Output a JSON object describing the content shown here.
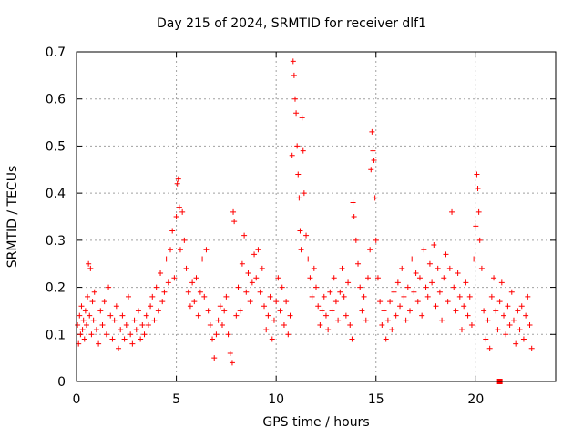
{
  "chart_data": {
    "type": "scatter",
    "title": "Day 215 of 2024, SRMTID for receiver dlf1",
    "xlabel": "GPS time / hours",
    "ylabel": "SRMTID / TECUs",
    "xlim": [
      0,
      24
    ],
    "ylim": [
      0,
      0.7
    ],
    "xticks": [
      0,
      5,
      10,
      15,
      20
    ],
    "yticks": [
      0,
      0.1,
      0.2,
      0.3,
      0.4,
      0.5,
      0.6,
      0.7
    ],
    "xtick_labels": [
      "0",
      "5",
      "10",
      "15",
      "20"
    ],
    "ytick_labels": [
      "0",
      "0.1",
      "0.2",
      "0.3",
      "0.4",
      "0.5",
      "0.6",
      "0.7"
    ],
    "grid": true,
    "marker": "+",
    "color": "#ff0000",
    "series": [
      {
        "name": "SRMTID",
        "points": [
          [
            0.05,
            0.12
          ],
          [
            0.1,
            0.08
          ],
          [
            0.15,
            0.14
          ],
          [
            0.2,
            0.1
          ],
          [
            0.25,
            0.16
          ],
          [
            0.3,
            0.11
          ],
          [
            0.35,
            0.13
          ],
          [
            0.4,
            0.09
          ],
          [
            0.45,
            0.15
          ],
          [
            0.5,
            0.12
          ],
          [
            0.55,
            0.18
          ],
          [
            0.6,
            0.25
          ],
          [
            0.65,
            0.14
          ],
          [
            0.7,
            0.24
          ],
          [
            0.75,
            0.1
          ],
          [
            0.8,
            0.17
          ],
          [
            0.85,
            0.13
          ],
          [
            0.9,
            0.19
          ],
          [
            1.0,
            0.11
          ],
          [
            1.1,
            0.08
          ],
          [
            1.2,
            0.15
          ],
          [
            1.3,
            0.12
          ],
          [
            1.4,
            0.17
          ],
          [
            1.5,
            0.1
          ],
          [
            1.6,
            0.2
          ],
          [
            1.7,
            0.14
          ],
          [
            1.8,
            0.09
          ],
          [
            1.9,
            0.13
          ],
          [
            2.0,
            0.16
          ],
          [
            2.1,
            0.07
          ],
          [
            2.2,
            0.11
          ],
          [
            2.3,
            0.14
          ],
          [
            2.4,
            0.09
          ],
          [
            2.5,
            0.12
          ],
          [
            2.6,
            0.18
          ],
          [
            2.7,
            0.1
          ],
          [
            2.8,
            0.08
          ],
          [
            2.9,
            0.13
          ],
          [
            3.0,
            0.11
          ],
          [
            3.1,
            0.15
          ],
          [
            3.2,
            0.09
          ],
          [
            3.3,
            0.12
          ],
          [
            3.4,
            0.1
          ],
          [
            3.5,
            0.14
          ],
          [
            3.6,
            0.12
          ],
          [
            3.7,
            0.16
          ],
          [
            3.8,
            0.18
          ],
          [
            3.9,
            0.13
          ],
          [
            4.0,
            0.2
          ],
          [
            4.1,
            0.15
          ],
          [
            4.2,
            0.23
          ],
          [
            4.3,
            0.17
          ],
          [
            4.4,
            0.19
          ],
          [
            4.5,
            0.26
          ],
          [
            4.6,
            0.21
          ],
          [
            4.7,
            0.28
          ],
          [
            4.8,
            0.32
          ],
          [
            4.9,
            0.22
          ],
          [
            5.0,
            0.35
          ],
          [
            5.05,
            0.42
          ],
          [
            5.1,
            0.43
          ],
          [
            5.15,
            0.37
          ],
          [
            5.2,
            0.28
          ],
          [
            5.3,
            0.36
          ],
          [
            5.4,
            0.3
          ],
          [
            5.5,
            0.24
          ],
          [
            5.6,
            0.19
          ],
          [
            5.7,
            0.16
          ],
          [
            5.8,
            0.21
          ],
          [
            5.9,
            0.17
          ],
          [
            6.0,
            0.22
          ],
          [
            6.1,
            0.14
          ],
          [
            6.2,
            0.19
          ],
          [
            6.3,
            0.26
          ],
          [
            6.4,
            0.18
          ],
          [
            6.5,
            0.28
          ],
          [
            6.6,
            0.15
          ],
          [
            6.7,
            0.12
          ],
          [
            6.8,
            0.09
          ],
          [
            6.9,
            0.05
          ],
          [
            7.0,
            0.1
          ],
          [
            7.1,
            0.13
          ],
          [
            7.2,
            0.16
          ],
          [
            7.3,
            0.12
          ],
          [
            7.4,
            0.15
          ],
          [
            7.5,
            0.18
          ],
          [
            7.6,
            0.1
          ],
          [
            7.7,
            0.06
          ],
          [
            7.8,
            0.04
          ],
          [
            7.85,
            0.36
          ],
          [
            7.9,
            0.34
          ],
          [
            8.0,
            0.14
          ],
          [
            8.1,
            0.2
          ],
          [
            8.2,
            0.15
          ],
          [
            8.3,
            0.25
          ],
          [
            8.4,
            0.31
          ],
          [
            8.5,
            0.19
          ],
          [
            8.6,
            0.23
          ],
          [
            8.7,
            0.17
          ],
          [
            8.8,
            0.21
          ],
          [
            8.9,
            0.27
          ],
          [
            9.0,
            0.22
          ],
          [
            9.1,
            0.28
          ],
          [
            9.2,
            0.19
          ],
          [
            9.3,
            0.24
          ],
          [
            9.4,
            0.16
          ],
          [
            9.5,
            0.11
          ],
          [
            9.6,
            0.14
          ],
          [
            9.7,
            0.18
          ],
          [
            9.8,
            0.09
          ],
          [
            9.9,
            0.13
          ],
          [
            10.0,
            0.17
          ],
          [
            10.1,
            0.22
          ],
          [
            10.2,
            0.15
          ],
          [
            10.3,
            0.2
          ],
          [
            10.4,
            0.12
          ],
          [
            10.5,
            0.17
          ],
          [
            10.6,
            0.1
          ],
          [
            10.7,
            0.14
          ],
          [
            10.8,
            0.48
          ],
          [
            10.85,
            0.68
          ],
          [
            10.9,
            0.65
          ],
          [
            10.95,
            0.6
          ],
          [
            11.0,
            0.57
          ],
          [
            11.05,
            0.5
          ],
          [
            11.1,
            0.44
          ],
          [
            11.15,
            0.39
          ],
          [
            11.2,
            0.32
          ],
          [
            11.25,
            0.28
          ],
          [
            11.3,
            0.56
          ],
          [
            11.35,
            0.49
          ],
          [
            11.4,
            0.4
          ],
          [
            11.5,
            0.31
          ],
          [
            11.6,
            0.26
          ],
          [
            11.7,
            0.22
          ],
          [
            11.8,
            0.18
          ],
          [
            11.9,
            0.24
          ],
          [
            12.0,
            0.2
          ],
          [
            12.1,
            0.16
          ],
          [
            12.2,
            0.12
          ],
          [
            12.3,
            0.15
          ],
          [
            12.4,
            0.18
          ],
          [
            12.5,
            0.14
          ],
          [
            12.6,
            0.11
          ],
          [
            12.7,
            0.19
          ],
          [
            12.8,
            0.15
          ],
          [
            12.9,
            0.22
          ],
          [
            13.0,
            0.17
          ],
          [
            13.1,
            0.13
          ],
          [
            13.2,
            0.19
          ],
          [
            13.3,
            0.24
          ],
          [
            13.4,
            0.18
          ],
          [
            13.5,
            0.14
          ],
          [
            13.6,
            0.21
          ],
          [
            13.7,
            0.12
          ],
          [
            13.8,
            0.09
          ],
          [
            13.85,
            0.38
          ],
          [
            13.9,
            0.35
          ],
          [
            14.0,
            0.3
          ],
          [
            14.1,
            0.25
          ],
          [
            14.2,
            0.2
          ],
          [
            14.3,
            0.15
          ],
          [
            14.4,
            0.18
          ],
          [
            14.5,
            0.13
          ],
          [
            14.6,
            0.22
          ],
          [
            14.7,
            0.28
          ],
          [
            14.75,
            0.45
          ],
          [
            14.8,
            0.53
          ],
          [
            14.85,
            0.49
          ],
          [
            14.9,
            0.47
          ],
          [
            14.95,
            0.39
          ],
          [
            15.0,
            0.3
          ],
          [
            15.1,
            0.22
          ],
          [
            15.2,
            0.17
          ],
          [
            15.3,
            0.12
          ],
          [
            15.4,
            0.15
          ],
          [
            15.5,
            0.09
          ],
          [
            15.6,
            0.13
          ],
          [
            15.7,
            0.17
          ],
          [
            15.8,
            0.11
          ],
          [
            15.9,
            0.19
          ],
          [
            16.0,
            0.14
          ],
          [
            16.1,
            0.21
          ],
          [
            16.2,
            0.16
          ],
          [
            16.3,
            0.24
          ],
          [
            16.4,
            0.18
          ],
          [
            16.5,
            0.13
          ],
          [
            16.6,
            0.2
          ],
          [
            16.7,
            0.15
          ],
          [
            16.8,
            0.26
          ],
          [
            16.9,
            0.19
          ],
          [
            17.0,
            0.23
          ],
          [
            17.1,
            0.17
          ],
          [
            17.2,
            0.22
          ],
          [
            17.3,
            0.14
          ],
          [
            17.4,
            0.28
          ],
          [
            17.5,
            0.2
          ],
          [
            17.6,
            0.18
          ],
          [
            17.7,
            0.25
          ],
          [
            17.8,
            0.21
          ],
          [
            17.9,
            0.29
          ],
          [
            18.0,
            0.16
          ],
          [
            18.1,
            0.24
          ],
          [
            18.2,
            0.19
          ],
          [
            18.3,
            0.13
          ],
          [
            18.4,
            0.22
          ],
          [
            18.5,
            0.27
          ],
          [
            18.6,
            0.17
          ],
          [
            18.7,
            0.24
          ],
          [
            18.8,
            0.36
          ],
          [
            18.9,
            0.2
          ],
          [
            19.0,
            0.15
          ],
          [
            19.1,
            0.23
          ],
          [
            19.2,
            0.18
          ],
          [
            19.3,
            0.11
          ],
          [
            19.4,
            0.16
          ],
          [
            19.5,
            0.21
          ],
          [
            19.6,
            0.14
          ],
          [
            19.7,
            0.18
          ],
          [
            19.8,
            0.12
          ],
          [
            19.9,
            0.26
          ],
          [
            20.0,
            0.33
          ],
          [
            20.05,
            0.44
          ],
          [
            20.1,
            0.41
          ],
          [
            20.15,
            0.36
          ],
          [
            20.2,
            0.3
          ],
          [
            20.3,
            0.24
          ],
          [
            20.4,
            0.15
          ],
          [
            20.5,
            0.09
          ],
          [
            20.6,
            0.13
          ],
          [
            20.7,
            0.07
          ],
          [
            20.8,
            0.18
          ],
          [
            20.9,
            0.22
          ],
          [
            21.0,
            0.15
          ],
          [
            21.1,
            0.11
          ],
          [
            21.2,
            0.17
          ],
          [
            21.3,
            0.21
          ],
          [
            21.4,
            0.14
          ],
          [
            21.5,
            0.1
          ],
          [
            21.6,
            0.16
          ],
          [
            21.7,
            0.12
          ],
          [
            21.8,
            0.19
          ],
          [
            21.9,
            0.13
          ],
          [
            22.0,
            0.08
          ],
          [
            22.1,
            0.15
          ],
          [
            22.2,
            0.11
          ],
          [
            22.3,
            0.16
          ],
          [
            22.4,
            0.09
          ],
          [
            22.5,
            0.14
          ],
          [
            22.6,
            0.18
          ],
          [
            22.7,
            0.12
          ],
          [
            22.8,
            0.07
          ]
        ]
      }
    ],
    "outlier_marker": {
      "x": 21.2,
      "y": 0.0
    }
  }
}
